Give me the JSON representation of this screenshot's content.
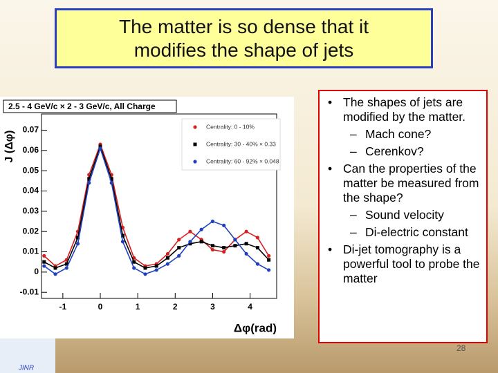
{
  "title": "The matter is so dense that it modifies the shape of jets",
  "bullets": [
    {
      "text": "The shapes of jets are modified by the matter.",
      "subitems": [
        "Mach cone?",
        "Cerenkov?"
      ]
    },
    {
      "text": "Can the properties of the matter be measured from the shape?",
      "subitems": [
        "Sound velocity",
        "Di-electric constant"
      ]
    },
    {
      "text": "Di-jet tomography is a powerful tool to probe the matter",
      "subitems": []
    }
  ],
  "page_number": "28",
  "logo_text": "JINR",
  "chart_data": {
    "type": "scatter",
    "title": "2.5 - 4 GeV/c × 2 - 3 GeV/c,  All Charge",
    "x_label": "Δφ(rad)",
    "y_label": "J (Δφ)",
    "x": [
      -1.5,
      -1.2,
      -0.9,
      -0.6,
      -0.3,
      0,
      0.3,
      0.6,
      0.9,
      1.2,
      1.5,
      1.8,
      2.1,
      2.4,
      2.7,
      3.0,
      3.3,
      3.6,
      3.9,
      4.2,
      4.5
    ],
    "series": [
      {
        "name": "Centrality: 0 - 10%",
        "color": "#d62020",
        "marker": "circle",
        "values": [
          0.008,
          0.003,
          0.006,
          0.02,
          0.048,
          0.063,
          0.048,
          0.022,
          0.007,
          0.003,
          0.004,
          0.009,
          0.016,
          0.02,
          0.016,
          0.011,
          0.01,
          0.016,
          0.02,
          0.017,
          0.008
        ]
      },
      {
        "name": "Centrality: 30 - 40% × 0.33",
        "color": "#000000",
        "marker": "square",
        "values": [
          0.005,
          0.002,
          0.004,
          0.017,
          0.046,
          0.062,
          0.046,
          0.018,
          0.005,
          0.002,
          0.003,
          0.007,
          0.012,
          0.014,
          0.015,
          0.013,
          0.012,
          0.013,
          0.014,
          0.012,
          0.006
        ]
      },
      {
        "name": "Centrality: 60 - 92% × 0.048",
        "color": "#2040c0",
        "marker": "circle",
        "values": [
          0.003,
          -0.001,
          0.002,
          0.014,
          0.044,
          0.061,
          0.044,
          0.015,
          0.002,
          -0.001,
          0.001,
          0.004,
          0.008,
          0.015,
          0.021,
          0.025,
          0.023,
          0.016,
          0.009,
          0.004,
          0.001
        ]
      }
    ],
    "xlim": [
      -1.57,
      4.71
    ],
    "ylim": [
      -0.013,
      0.078
    ],
    "xticks": [
      -1,
      0,
      1,
      2,
      3,
      4
    ],
    "yticks": [
      -0.01,
      0,
      0.01,
      0.02,
      0.03,
      0.04,
      0.05,
      0.06,
      0.07
    ],
    "legend": "upper right"
  }
}
